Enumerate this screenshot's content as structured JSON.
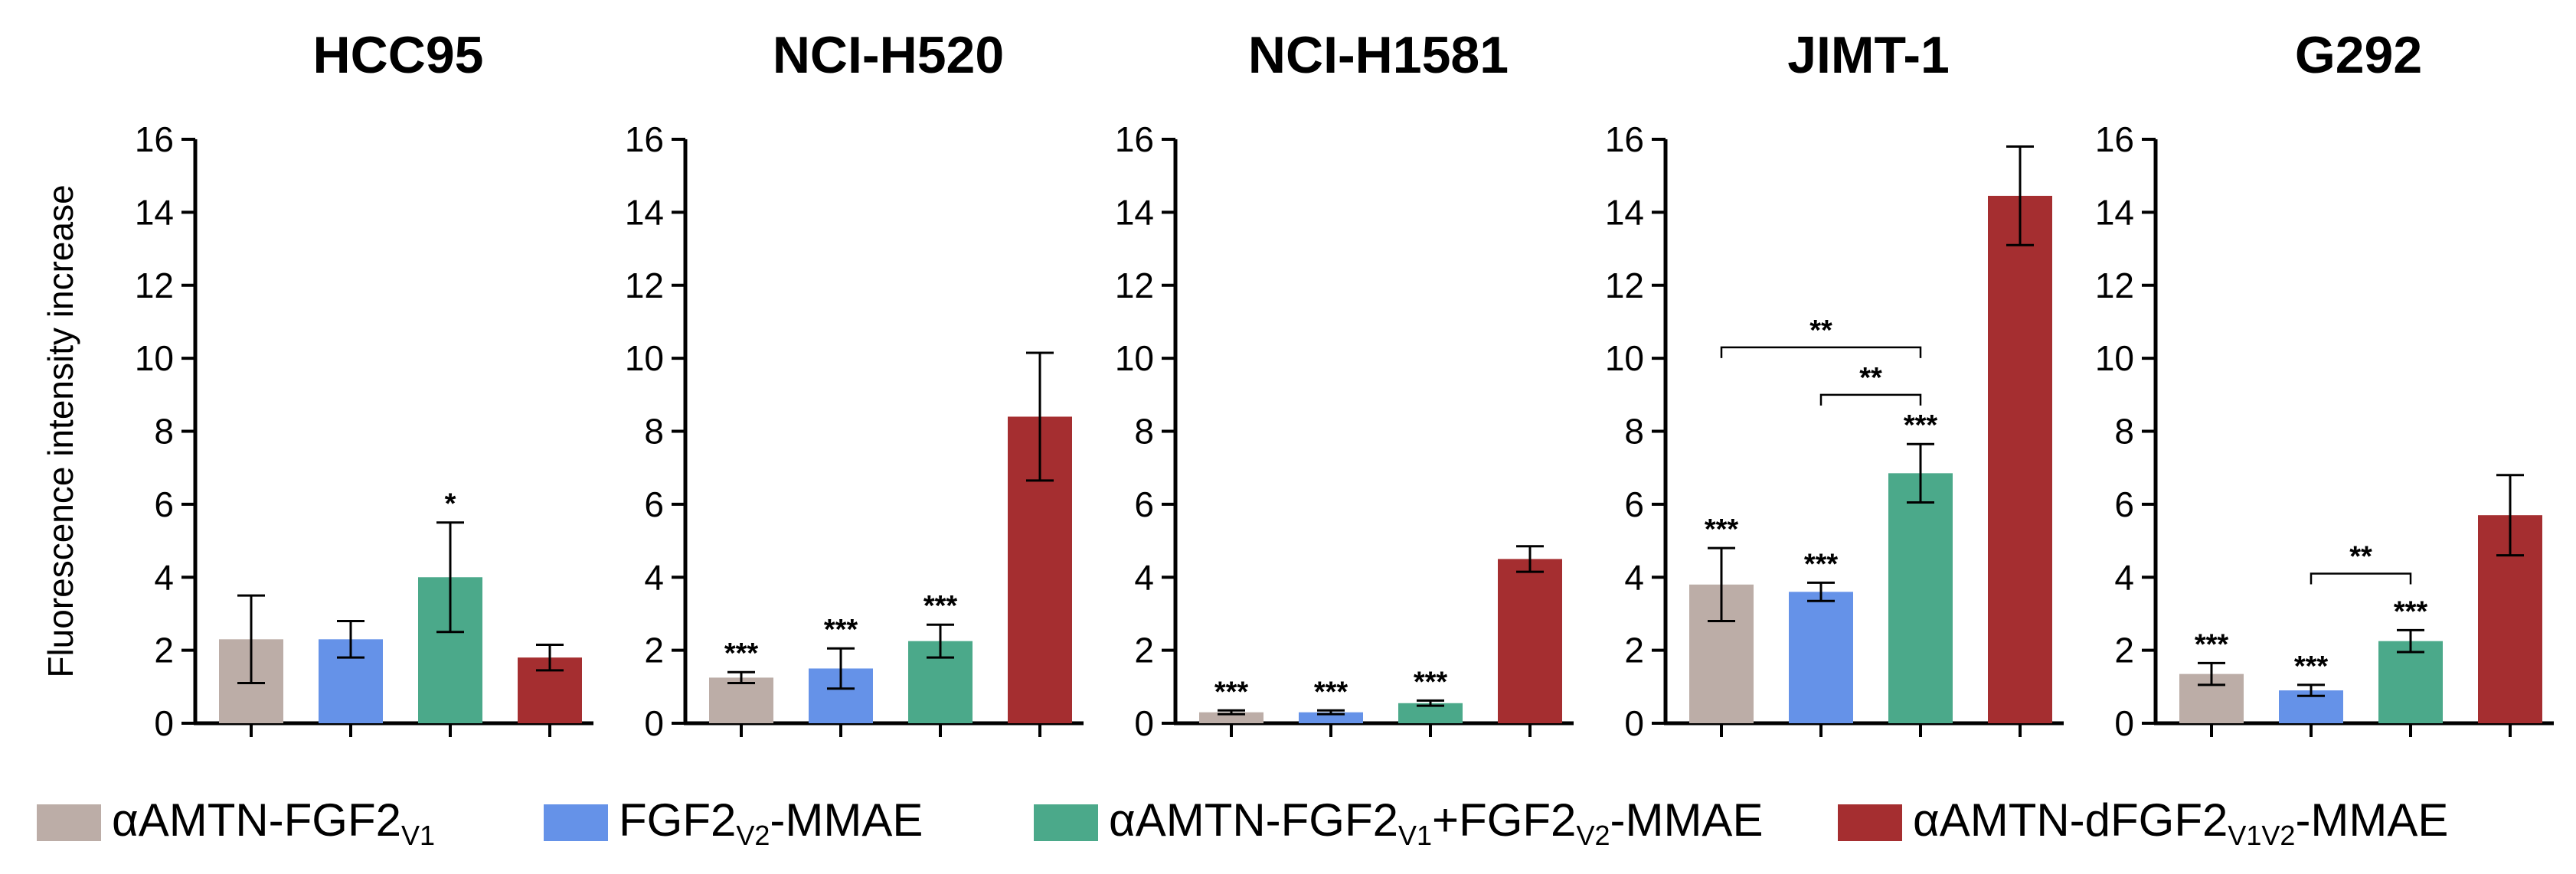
{
  "chart_data": {
    "type": "bar",
    "ylabel": "Fluorescence intensity increase",
    "ylim": [
      0,
      16
    ],
    "yticks": [
      "0",
      "2",
      "4",
      "6",
      "8",
      "10",
      "12",
      "14",
      "16"
    ],
    "series_names": [
      "αAMTN-FGF2V1",
      "FGF2V2-MMAE",
      "αAMTN-FGF2V1+FGF2V2-MMAE",
      "αAMTN-dFGF2V1V2-MMAE"
    ],
    "colors": [
      "#bcada7",
      "#6592e8",
      "#4ba98a",
      "#a52e30"
    ],
    "panels": [
      {
        "title": "HCC95",
        "values": [
          2.3,
          2.3,
          4.0,
          1.8
        ],
        "errors": [
          1.2,
          0.5,
          1.5,
          0.35
        ],
        "significance": [
          "",
          "",
          "*",
          ""
        ],
        "brackets": []
      },
      {
        "title": "NCI-H520",
        "values": [
          1.25,
          1.5,
          2.25,
          8.4
        ],
        "errors": [
          0.15,
          0.55,
          0.45,
          1.75
        ],
        "significance": [
          "***",
          "***",
          "***",
          ""
        ],
        "brackets": []
      },
      {
        "title": "NCI-H1581",
        "values": [
          0.3,
          0.3,
          0.55,
          4.5
        ],
        "errors": [
          0.05,
          0.05,
          0.07,
          0.35
        ],
        "significance": [
          "***",
          "***",
          "***",
          ""
        ],
        "brackets": []
      },
      {
        "title": "JIMT-1",
        "values": [
          3.8,
          3.6,
          6.85,
          14.45
        ],
        "errors": [
          1.0,
          0.25,
          0.8,
          1.35
        ],
        "significance": [
          "***",
          "***",
          "***",
          ""
        ],
        "brackets": [
          {
            "from": 0,
            "to": 2,
            "y": 10.3,
            "label": "**"
          },
          {
            "from": 1,
            "to": 2,
            "y": 9.0,
            "label": "**"
          }
        ]
      },
      {
        "title": "G292",
        "values": [
          1.35,
          0.9,
          2.25,
          5.7
        ],
        "errors": [
          0.3,
          0.15,
          0.3,
          1.1
        ],
        "significance": [
          "***",
          "***",
          "***",
          ""
        ],
        "brackets": [
          {
            "from": 1,
            "to": 2,
            "y": 4.1,
            "label": "**"
          }
        ]
      }
    ],
    "legend": [
      {
        "main": "αAMTN-FGF2",
        "sub": "V1",
        "rest": "",
        "sub2": "",
        "rest2": ""
      },
      {
        "main": "FGF2",
        "sub": "V2",
        "rest": "-MMAE",
        "sub2": "",
        "rest2": ""
      },
      {
        "main": "αAMTN-FGF2",
        "sub": "V1",
        "rest": "+FGF2",
        "sub2": "V2",
        "rest2": "-MMAE"
      },
      {
        "main": "αAMTN-dFGF2",
        "sub": "V1V2",
        "rest": "-MMAE",
        "sub2": "",
        "rest2": ""
      }
    ]
  }
}
